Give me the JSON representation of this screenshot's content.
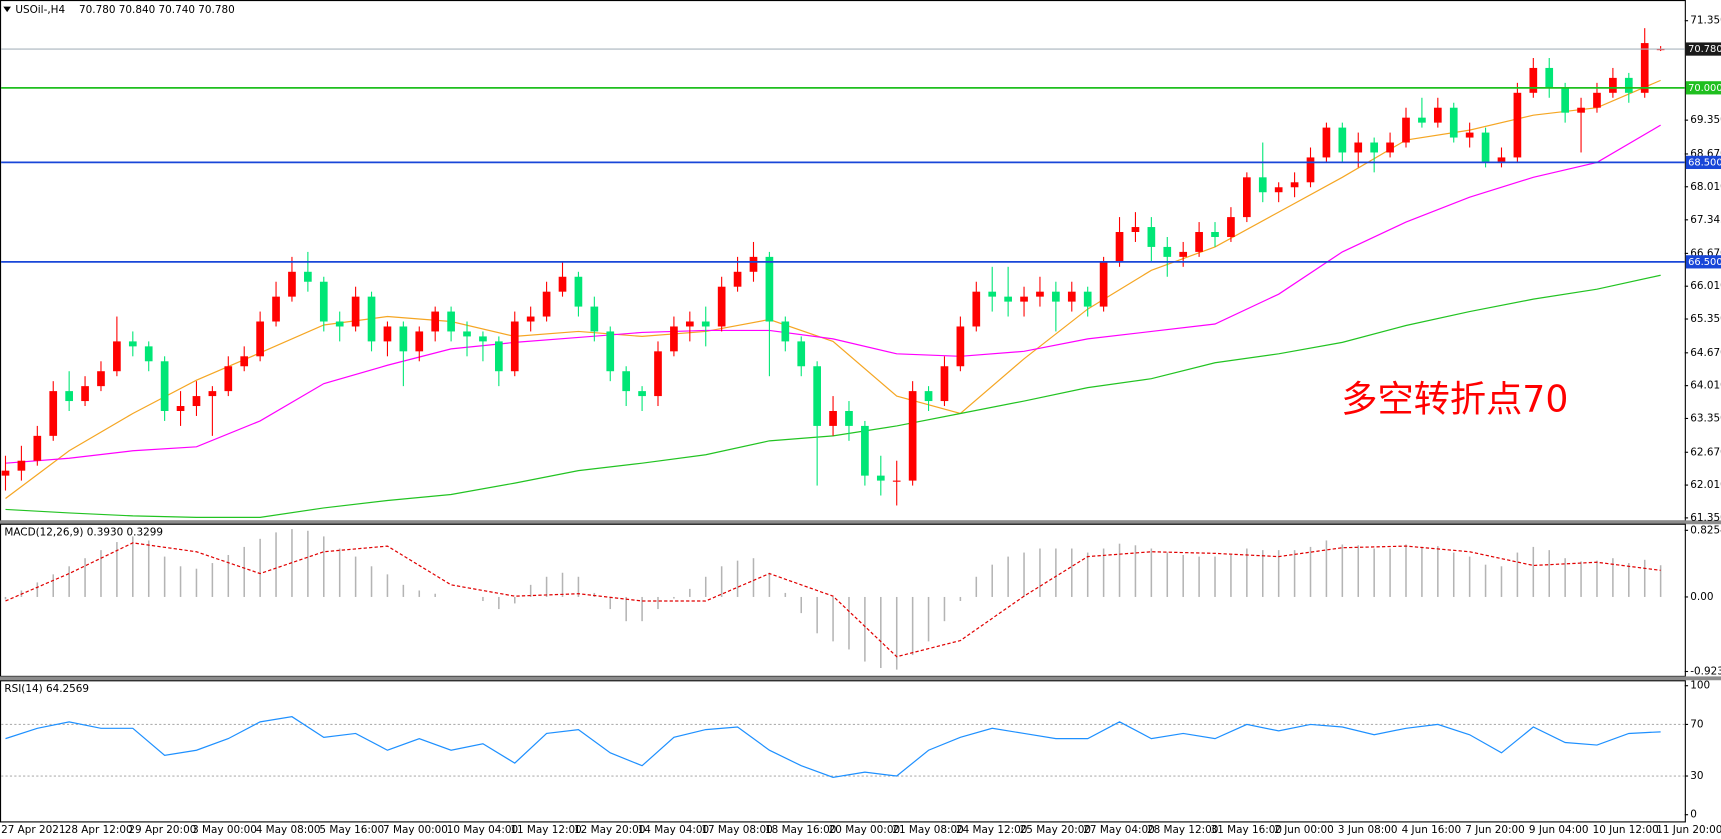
{
  "chart_data": [
    {
      "type": "candlestick",
      "title": "USOil-,H4",
      "subtitle": "70.780 70.840 70.740 70.780",
      "annotation": "多空转折点70",
      "annotation_color": "#ff0000",
      "up_color": "#ff0000",
      "down_color": "#00e676",
      "ylim": [
        61.3,
        71.7
      ],
      "yticks": [
        {
          "value": 71.35,
          "label": "71.350"
        },
        {
          "value": 69.35,
          "label": "69.350"
        },
        {
          "value": 68.67,
          "label": "68.670"
        },
        {
          "value": 68.01,
          "label": "68.010"
        },
        67.345,
        {
          "value": 66.67,
          "label": "66.670"
        },
        {
          "value": 66.01,
          "label": "66.010"
        },
        {
          "value": 65.35,
          "label": "65.350"
        },
        {
          "value": 64.67,
          "label": "64.670"
        },
        {
          "value": 64.01,
          "label": "64.010"
        },
        {
          "value": 63.35,
          "label": "63.350"
        },
        {
          "value": 62.67,
          "label": "62.670"
        },
        {
          "value": 62.01,
          "label": "62.010"
        },
        {
          "value": 61.35,
          "label": "61.350"
        }
      ],
      "levels": [
        {
          "value": 70.78,
          "label": "70.780",
          "color": "#a9b4be",
          "label_background": "#1a1a1a"
        },
        {
          "value": 70,
          "label": "70.000",
          "color": "#1fbf1f",
          "label_background": "#1fbf1f"
        },
        {
          "value": 68.5,
          "label": "68.500",
          "color": "#1846d8",
          "label_background": "#1846d8"
        },
        {
          "value": 66.5,
          "label": "66.500",
          "color": "#1846d8",
          "label_background": "#1846d8"
        }
      ],
      "categories": [
        "27 Apr 2021",
        null,
        null,
        null,
        "28 Apr 12:00",
        null,
        null,
        null,
        "29 Apr 20:00",
        null,
        null,
        null,
        "3 May 00:00",
        null,
        null,
        null,
        "4 May 08:00",
        null,
        null,
        null,
        "5 May 16:00",
        null,
        null,
        null,
        "7 May 00:00",
        null,
        null,
        null,
        "10 May 04:00",
        null,
        null,
        null,
        "11 May 12:00",
        null,
        null,
        null,
        "12 May 20:00",
        null,
        null,
        null,
        "14 May 04:00",
        null,
        null,
        null,
        "17 May 08:00",
        null,
        null,
        null,
        "18 May 16:00",
        null,
        null,
        null,
        "20 May 00:00",
        null,
        null,
        null,
        "21 May 08:00",
        null,
        null,
        null,
        "24 May 12:00",
        null,
        null,
        null,
        "25 May 20:00",
        null,
        null,
        null,
        "27 May 04:00",
        null,
        null,
        null,
        "28 May 12:00",
        null,
        null,
        null,
        "31 May 16:00",
        null,
        null,
        null,
        "2 Jun 00:00",
        null,
        null,
        null,
        "3 Jun 08:00",
        null,
        null,
        null,
        "4 Jun 16:00",
        null,
        null,
        null,
        "7 Jun 20:00",
        null,
        null,
        null,
        "9 Jun 04:00",
        null,
        null,
        null,
        "10 Jun 12:00",
        null,
        null,
        null,
        "11 Jun 20:00"
      ],
      "open": [
        62.2,
        62.3,
        62.5,
        63.0,
        63.9,
        63.7,
        64.0,
        64.3,
        64.9,
        64.8,
        64.5,
        63.5,
        63.6,
        63.8,
        63.9,
        64.4,
        64.6,
        65.3,
        65.8,
        66.3,
        66.1,
        65.3,
        65.2,
        65.8,
        64.9,
        65.2,
        64.7,
        65.1,
        65.5,
        65.1,
        65.0,
        64.9,
        64.3,
        65.3,
        65.4,
        65.9,
        66.2,
        65.6,
        65.1,
        64.3,
        63.9,
        63.8,
        64.7,
        65.2,
        65.3,
        65.2,
        66.0,
        66.3,
        66.6,
        65.3,
        64.9,
        64.4,
        63.2,
        63.5,
        63.2,
        62.2,
        62.1,
        62.1,
        63.9,
        63.7,
        64.4,
        65.2,
        65.9,
        65.8,
        65.7,
        65.8,
        65.9,
        65.7,
        65.9,
        65.6,
        66.5,
        67.1,
        67.2,
        66.8,
        66.6,
        66.7,
        67.1,
        67.0,
        67.4,
        68.2,
        67.9,
        68.0,
        68.1,
        68.6,
        69.2,
        68.7,
        68.9,
        68.7,
        68.9,
        69.4,
        69.3,
        69.6,
        69.0,
        69.1,
        68.5,
        68.6,
        69.9,
        70.4,
        70.0,
        69.5,
        69.6,
        69.9,
        70.2,
        69.9,
        70.78
      ],
      "high": [
        62.6,
        62.8,
        63.2,
        64.1,
        64.3,
        64.2,
        64.5,
        65.4,
        65.1,
        64.9,
        64.6,
        63.9,
        64.1,
        64.0,
        64.6,
        64.8,
        65.5,
        66.1,
        66.6,
        66.7,
        66.2,
        65.5,
        66.0,
        65.9,
        65.3,
        65.3,
        65.2,
        65.6,
        65.6,
        65.3,
        65.1,
        65.0,
        65.5,
        65.6,
        66.1,
        66.5,
        66.3,
        65.8,
        65.2,
        64.4,
        64.0,
        64.9,
        65.4,
        65.5,
        65.6,
        66.2,
        66.6,
        66.9,
        66.7,
        65.4,
        65.0,
        64.5,
        63.8,
        63.7,
        63.3,
        62.6,
        62.5,
        64.1,
        64.0,
        64.6,
        65.4,
        66.1,
        66.4,
        66.4,
        66.0,
        66.2,
        66.1,
        66.1,
        66.0,
        66.6,
        67.4,
        67.5,
        67.4,
        67.0,
        66.9,
        67.3,
        67.3,
        67.6,
        68.3,
        68.9,
        68.1,
        68.3,
        68.8,
        69.3,
        69.3,
        69.1,
        69.0,
        69.1,
        69.6,
        69.8,
        69.8,
        69.7,
        69.3,
        69.2,
        68.8,
        70.1,
        70.6,
        70.6,
        70.1,
        69.8,
        70.1,
        70.4,
        70.3,
        71.2,
        70.84
      ],
      "low": [
        61.9,
        62.1,
        62.4,
        62.9,
        63.5,
        63.6,
        63.9,
        64.2,
        64.6,
        64.3,
        63.3,
        63.2,
        63.4,
        63.0,
        63.8,
        64.3,
        64.5,
        65.2,
        65.7,
        65.9,
        65.1,
        64.9,
        65.1,
        64.7,
        64.6,
        64.0,
        64.5,
        64.9,
        64.9,
        64.6,
        64.5,
        64.0,
        64.2,
        65.1,
        65.3,
        65.8,
        65.4,
        64.9,
        64.1,
        63.6,
        63.5,
        63.6,
        64.6,
        64.9,
        64.8,
        65.1,
        65.9,
        66.1,
        64.2,
        64.7,
        64.2,
        62.0,
        63.0,
        62.9,
        62.0,
        61.8,
        61.6,
        62.0,
        63.5,
        63.6,
        64.3,
        65.1,
        65.5,
        65.4,
        65.4,
        65.6,
        65.1,
        65.5,
        65.4,
        65.5,
        66.4,
        66.9,
        66.5,
        66.2,
        66.4,
        66.6,
        66.8,
        66.9,
        67.3,
        67.7,
        67.7,
        67.8,
        68.0,
        68.5,
        68.5,
        68.4,
        68.3,
        68.6,
        68.8,
        69.2,
        69.2,
        68.9,
        68.8,
        68.4,
        68.4,
        68.5,
        69.8,
        69.8,
        69.3,
        68.7,
        69.5,
        69.8,
        69.7,
        69.8,
        70.74
      ],
      "close": [
        62.3,
        62.5,
        63.0,
        63.9,
        63.7,
        64.0,
        64.3,
        64.9,
        64.8,
        64.5,
        63.5,
        63.6,
        63.8,
        63.9,
        64.4,
        64.6,
        65.3,
        65.8,
        66.3,
        66.1,
        65.3,
        65.2,
        65.8,
        64.9,
        65.2,
        64.7,
        65.1,
        65.5,
        65.1,
        65.0,
        64.9,
        64.3,
        65.3,
        65.4,
        65.9,
        66.2,
        65.6,
        65.1,
        64.3,
        63.9,
        63.8,
        64.7,
        65.2,
        65.3,
        65.2,
        66.0,
        66.3,
        66.6,
        65.3,
        64.9,
        64.4,
        63.2,
        63.5,
        63.2,
        62.2,
        62.1,
        62.1,
        63.9,
        63.7,
        64.4,
        65.2,
        65.9,
        65.8,
        65.7,
        65.8,
        65.9,
        65.7,
        65.9,
        65.6,
        66.5,
        67.1,
        67.2,
        66.8,
        66.6,
        66.7,
        67.1,
        67.0,
        67.4,
        68.2,
        67.9,
        68.0,
        68.1,
        68.6,
        69.2,
        68.7,
        68.9,
        68.7,
        68.9,
        69.4,
        69.3,
        69.6,
        69.0,
        69.1,
        68.5,
        68.6,
        69.9,
        70.4,
        70.0,
        69.5,
        69.6,
        69.9,
        70.2,
        69.9,
        70.9,
        70.78
      ],
      "overlays": [
        {
          "color": "#f5a623",
          "x": [
            0,
            4,
            8,
            12,
            16,
            20,
            24,
            28,
            32,
            36,
            40,
            44,
            48,
            52,
            56,
            60,
            64,
            68,
            72,
            76,
            80,
            84,
            88,
            92,
            96,
            100,
            104
          ],
          "values": [
            61.74,
            62.7,
            63.45,
            64.12,
            64.67,
            65.23,
            65.4,
            65.3,
            65.0,
            65.1,
            65.0,
            65.1,
            65.34,
            64.9,
            63.8,
            63.45,
            64.55,
            65.55,
            66.33,
            66.8,
            67.5,
            68.2,
            68.95,
            69.15,
            69.45,
            69.6,
            70.15
          ]
        },
        {
          "color": "#ff00ff",
          "x": [
            0,
            4,
            8,
            12,
            16,
            20,
            24,
            28,
            32,
            36,
            40,
            44,
            48,
            52,
            56,
            60,
            64,
            68,
            72,
            76,
            80,
            84,
            88,
            92,
            96,
            100,
            104
          ],
          "values": [
            62.45,
            62.55,
            62.7,
            62.78,
            63.3,
            64.05,
            64.42,
            64.75,
            64.88,
            64.98,
            65.08,
            65.12,
            65.12,
            64.95,
            64.65,
            64.6,
            64.7,
            64.95,
            65.1,
            65.25,
            65.85,
            66.7,
            67.3,
            67.8,
            68.2,
            68.5,
            69.25
          ]
        },
        {
          "color": "#22c322",
          "x": [
            0,
            4,
            8,
            12,
            16,
            20,
            24,
            28,
            32,
            36,
            40,
            44,
            48,
            52,
            56,
            60,
            64,
            68,
            72,
            76,
            80,
            84,
            88,
            92,
            96,
            100,
            104
          ],
          "values": [
            61.52,
            61.45,
            61.39,
            61.36,
            61.36,
            61.55,
            61.7,
            61.82,
            62.05,
            62.3,
            62.45,
            62.62,
            62.9,
            63.0,
            63.2,
            63.45,
            63.7,
            63.97,
            64.15,
            64.47,
            64.65,
            64.88,
            65.22,
            65.5,
            65.75,
            65.95,
            66.23
          ]
        }
      ]
    },
    {
      "type": "macd",
      "title": "MACD(12,26,9) 0.3930 0.3299",
      "ylim": [
        -0.977,
        0.894
      ],
      "yticks": [
        0.8254,
        {
          "value": 0,
          "label": "0.00"
        },
        -0.9234
      ],
      "series": [
        {
          "type": "bar",
          "color": "#b4b4b4",
          "values": [
            -0.03,
            0.08,
            0.18,
            0.28,
            0.38,
            0.48,
            0.58,
            0.68,
            0.75,
            0.7,
            0.5,
            0.38,
            0.35,
            0.42,
            0.52,
            0.62,
            0.72,
            0.8,
            0.84,
            0.82,
            0.75,
            0.6,
            0.5,
            0.38,
            0.28,
            0.15,
            0.08,
            0.04,
            0.0,
            0.0,
            -0.05,
            -0.15,
            -0.08,
            0.15,
            0.25,
            0.3,
            0.25,
            0.05,
            -0.15,
            -0.3,
            -0.3,
            -0.15,
            -0.02,
            0.1,
            0.25,
            0.38,
            0.45,
            0.48,
            0.3,
            0.05,
            -0.2,
            -0.45,
            -0.55,
            -0.65,
            -0.8,
            -0.88,
            -0.9,
            -0.72,
            -0.55,
            -0.3,
            -0.05,
            0.25,
            0.4,
            0.5,
            0.55,
            0.6,
            0.6,
            0.6,
            0.55,
            0.6,
            0.66,
            0.64,
            0.6,
            0.55,
            0.52,
            0.5,
            0.5,
            0.52,
            0.6,
            0.58,
            0.58,
            0.58,
            0.62,
            0.7,
            0.65,
            0.64,
            0.6,
            0.6,
            0.65,
            0.62,
            0.63,
            0.55,
            0.5,
            0.4,
            0.38,
            0.55,
            0.62,
            0.58,
            0.48,
            0.44,
            0.45,
            0.48,
            0.42,
            0.46,
            0.393
          ]
        },
        {
          "type": "line",
          "color": "#e00000",
          "dashed": true,
          "x": [
            0,
            4,
            8,
            12,
            16,
            20,
            24,
            28,
            32,
            36,
            40,
            44,
            48,
            52,
            56,
            60,
            64,
            68,
            72,
            76,
            80,
            84,
            88,
            92,
            96,
            100,
            104
          ],
          "values": [
            -0.05,
            0.29,
            0.67,
            0.56,
            0.29,
            0.56,
            0.63,
            0.15,
            0.01,
            0.04,
            -0.05,
            -0.05,
            0.29,
            0.01,
            -0.74,
            -0.54,
            0.01,
            0.5,
            0.56,
            0.54,
            0.5,
            0.61,
            0.63,
            0.56,
            0.39,
            0.43,
            0.3299
          ]
        }
      ]
    },
    {
      "type": "line",
      "title": "RSI(14) 64.2569",
      "ylim": [
        -6,
        103.4
      ],
      "yticks": [
        100,
        70,
        30,
        0
      ],
      "levels": [
        70,
        30
      ],
      "series": [
        {
          "color": "#1e90ff",
          "x": [
            0,
            2,
            4,
            6,
            8,
            10,
            12,
            14,
            16,
            18,
            20,
            22,
            24,
            26,
            28,
            30,
            32,
            34,
            36,
            38,
            40,
            42,
            44,
            46,
            48,
            50,
            52,
            54,
            56,
            58,
            60,
            62,
            64,
            66,
            68,
            70,
            72,
            74,
            76,
            78,
            80,
            82,
            84,
            86,
            88,
            90,
            92,
            94,
            96,
            98,
            100,
            102,
            104
          ],
          "values": [
            59,
            67,
            72,
            67,
            67,
            46,
            50,
            59,
            72,
            76,
            60,
            63,
            50,
            59,
            50,
            55,
            40,
            63,
            66,
            48,
            38,
            60,
            66,
            68,
            50,
            38,
            29,
            33,
            30,
            50,
            60,
            67,
            63,
            59,
            59,
            72,
            59,
            63,
            59,
            70,
            65,
            70,
            68,
            62,
            67,
            70,
            62,
            48,
            68,
            56,
            54,
            63,
            64.2569
          ]
        }
      ]
    }
  ]
}
